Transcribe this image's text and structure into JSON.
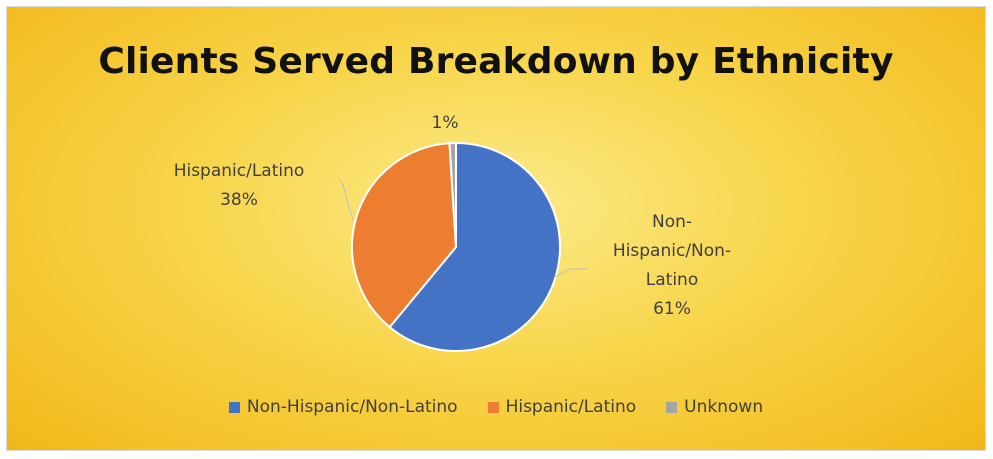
{
  "chart_data": {
    "type": "pie",
    "title": "Clients Served Breakdown by Ethnicity",
    "series": [
      {
        "name": "Non-Hispanic/Non-Latino",
        "value": 61,
        "label_lines": [
          "Non-",
          "Hispanic/Non-",
          "Latino",
          "61%"
        ],
        "color": "#4472c4"
      },
      {
        "name": "Hispanic/Latino",
        "value": 38,
        "label_lines": [
          "Hispanic/Latino",
          "38%"
        ],
        "color": "#ed7d31"
      },
      {
        "name": "Unknown",
        "value": 1,
        "label_lines": [
          "1%"
        ],
        "color": "#a5a5a5"
      }
    ],
    "legend_position": "bottom",
    "data_labels": "outside with leader lines"
  },
  "legend": {
    "items": [
      {
        "label": "Non-Hispanic/Non-Latino",
        "color": "#4472c4"
      },
      {
        "label": "Hispanic/Latino",
        "color": "#ed7d31"
      },
      {
        "label": "Unknown",
        "color": "#a5a5a5"
      }
    ]
  }
}
